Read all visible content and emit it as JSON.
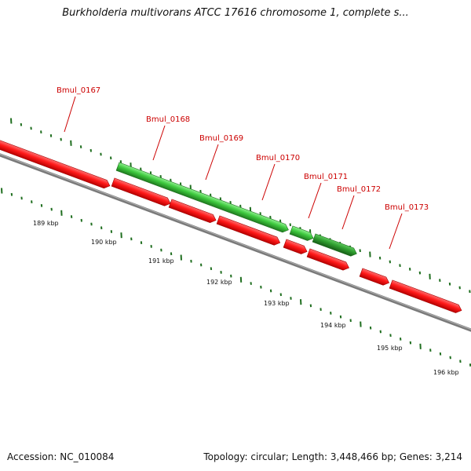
{
  "map": {
    "title": "Burkholderia multivorans ATCC 17616 chromosome 1, complete s...",
    "accession_label": "Accession: NC_010084",
    "summary_label": "Topology: circular; Length: 3,448,466 bp; Genes: 3,214"
  },
  "colors": {
    "forward_gene": "#3ec93e",
    "reverse_gene": "#f01818",
    "backbone": "#808080",
    "gene_label": "#cc0000",
    "tick": "#1f6e1f"
  },
  "ticks": [
    "189 kbp",
    "190 kbp",
    "191 kbp",
    "192 kbp",
    "193 kbp",
    "194 kbp",
    "195 kbp",
    "196 kbp"
  ],
  "genes": [
    {
      "locus": "Bmul_0167",
      "strand": "reverse",
      "labeled": true
    },
    {
      "locus": "Bmul_0168",
      "strand": "forward",
      "labeled": true
    },
    {
      "locus": "Bmul_0169",
      "strand": "reverse",
      "labeled": true
    },
    {
      "locus": "Bmul_0170",
      "strand": "reverse",
      "labeled": true
    },
    {
      "locus": "Bmul_0171",
      "strand": "forward",
      "labeled": true
    },
    {
      "locus": "Bmul_0172",
      "strand": "forward",
      "labeled": true
    },
    {
      "locus": "Bmul_0173",
      "strand": "reverse",
      "labeled": true
    },
    {
      "locus": "",
      "strand": "reverse",
      "labeled": false
    },
    {
      "locus": "",
      "strand": "reverse",
      "labeled": false
    },
    {
      "locus": "",
      "strand": "reverse",
      "labeled": false
    },
    {
      "locus": "",
      "strand": "reverse",
      "labeled": false
    }
  ]
}
